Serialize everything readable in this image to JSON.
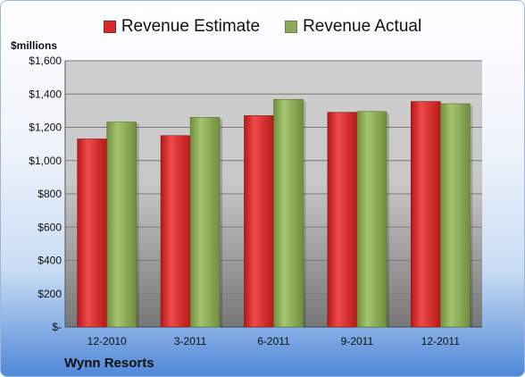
{
  "chart_data": {
    "type": "bar",
    "title": "",
    "xlabel": "",
    "ylabel": "$millions",
    "company": "Wynn Resorts",
    "categories": [
      "12-2010",
      "3-2011",
      "6-2011",
      "9-2011",
      "12-2011"
    ],
    "series": [
      {
        "name": "Revenue Estimate",
        "color": "#d42a2a",
        "values": [
          1130,
          1150,
          1270,
          1290,
          1355
        ]
      },
      {
        "name": "Revenue Actual",
        "color": "#8cab5a",
        "values": [
          1232,
          1260,
          1368,
          1295,
          1342
        ]
      }
    ],
    "ylim": [
      0,
      1600
    ],
    "yticks": [
      0,
      200,
      400,
      600,
      800,
      1000,
      1200,
      1400,
      1600
    ],
    "ytick_labels": [
      "$-",
      "$200",
      "$400",
      "$600",
      "$800",
      "$1,000",
      "$1,200",
      "$1,400",
      "$1,600"
    ],
    "grid": true,
    "legend_position": "top"
  }
}
